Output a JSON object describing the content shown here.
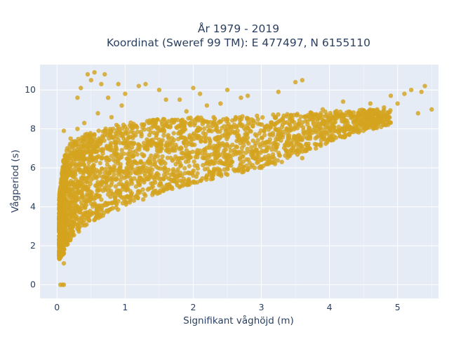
{
  "colors": {
    "plot_background": "#e5ecf6",
    "grid": "#ffffff",
    "marker": "#d4a41e",
    "text": "#2a3f5f"
  },
  "chart_data": {
    "type": "scatter",
    "title": "År 1979 - 2019",
    "subtitle": "Koordinat (Sweref 99 TM): E 477497, N 6155110",
    "xlabel": "Signifikant våghöjd (m)",
    "ylabel": "Vågperiod (s)",
    "xlim": [
      -0.25,
      5.6
    ],
    "ylim": [
      -0.7,
      11.3
    ],
    "xticks": [
      0,
      1,
      2,
      3,
      4,
      5
    ],
    "yticks": [
      0,
      2,
      4,
      6,
      8,
      10
    ],
    "grid": true,
    "legend": "none",
    "series": [
      {
        "marker_color": "#d4a41e",
        "points": [
          [
            0.05,
            0.0
          ],
          [
            0.08,
            0.0
          ],
          [
            0.1,
            0.0
          ],
          [
            0.06,
            1.5
          ],
          [
            0.1,
            1.1
          ],
          [
            0.05,
            3.8
          ],
          [
            0.1,
            1.8
          ],
          [
            0.15,
            2.2
          ],
          [
            0.2,
            2.6
          ],
          [
            0.3,
            3.0
          ],
          [
            0.4,
            3.3
          ],
          [
            0.5,
            3.6
          ],
          [
            0.6,
            3.8
          ],
          [
            0.8,
            4.2
          ],
          [
            1.0,
            4.5
          ],
          [
            1.2,
            4.8
          ],
          [
            1.5,
            5.1
          ],
          [
            2.0,
            5.6
          ],
          [
            2.5,
            6.0
          ],
          [
            3.0,
            6.4
          ],
          [
            3.5,
            6.8
          ],
          [
            3.0,
            6.0
          ],
          [
            3.2,
            6.2
          ],
          [
            3.6,
            6.5
          ],
          [
            3.8,
            7.0
          ],
          [
            4.0,
            7.5
          ],
          [
            0.1,
            5.0
          ],
          [
            0.15,
            7.0
          ],
          [
            0.2,
            7.5
          ],
          [
            0.1,
            7.9
          ],
          [
            0.3,
            8.0
          ],
          [
            0.4,
            8.3
          ],
          [
            0.3,
            9.6
          ],
          [
            0.45,
            10.8
          ],
          [
            0.5,
            10.5
          ],
          [
            0.55,
            10.9
          ],
          [
            0.7,
            10.8
          ],
          [
            0.65,
            10.3
          ],
          [
            0.9,
            10.3
          ],
          [
            1.2,
            10.2
          ],
          [
            1.3,
            10.3
          ],
          [
            1.0,
            9.8
          ],
          [
            1.5,
            10.0
          ],
          [
            1.6,
            9.5
          ],
          [
            2.0,
            10.1
          ],
          [
            2.1,
            9.8
          ],
          [
            2.5,
            10.0
          ],
          [
            2.8,
            9.7
          ],
          [
            3.25,
            9.9
          ],
          [
            3.6,
            10.5
          ],
          [
            3.5,
            10.4
          ],
          [
            5.4,
            10.2
          ],
          [
            5.35,
            9.9
          ],
          [
            5.2,
            10.0
          ],
          [
            5.1,
            9.8
          ],
          [
            4.9,
            9.7
          ],
          [
            5.0,
            9.3
          ],
          [
            5.3,
            8.8
          ],
          [
            4.6,
            9.3
          ],
          [
            4.7,
            9.0
          ],
          [
            4.8,
            8.6
          ],
          [
            4.5,
            8.9
          ],
          [
            4.4,
            8.5
          ],
          [
            4.3,
            8.1
          ],
          [
            4.0,
            8.0
          ],
          [
            3.8,
            7.9
          ],
          [
            3.6,
            7.0
          ],
          [
            3.5,
            7.5
          ],
          [
            3.3,
            6.3
          ],
          [
            3.1,
            6.2
          ],
          [
            2.9,
            6.0
          ],
          [
            3.2,
            7.3
          ],
          [
            4.6,
            8.2
          ],
          [
            4.8,
            9.1
          ],
          [
            4.2,
            9.4
          ],
          [
            5.5,
            9.0
          ],
          [
            2.2,
            9.2
          ],
          [
            1.8,
            9.5
          ],
          [
            0.6,
            8.8
          ],
          [
            0.8,
            8.6
          ],
          [
            0.75,
            9.6
          ],
          [
            0.35,
            10.1
          ],
          [
            0.95,
            9.2
          ],
          [
            2.4,
            9.3
          ],
          [
            2.7,
            9.6
          ],
          [
            1.9,
            8.9
          ],
          [
            3.9,
            9.0
          ],
          [
            4.1,
            8.8
          ]
        ],
        "dense_region": {
          "x_range": [
            0.03,
            4.9
          ],
          "lower_envelope": [
            [
              0.03,
              1.3
            ],
            [
              0.1,
              1.6
            ],
            [
              0.2,
              2.3
            ],
            [
              0.4,
              3.0
            ],
            [
              0.6,
              3.4
            ],
            [
              1.0,
              4.0
            ],
            [
              1.5,
              4.7
            ],
            [
              2.0,
              5.2
            ],
            [
              2.5,
              5.6
            ],
            [
              3.0,
              6.0
            ],
            [
              3.5,
              6.6
            ],
            [
              4.0,
              7.3
            ],
            [
              4.5,
              7.9
            ],
            [
              4.9,
              8.2
            ]
          ],
          "upper_envelope": [
            [
              0.03,
              4.5
            ],
            [
              0.1,
              6.6
            ],
            [
              0.2,
              7.3
            ],
            [
              0.4,
              7.7
            ],
            [
              0.6,
              8.0
            ],
            [
              1.0,
              8.3
            ],
            [
              1.5,
              8.5
            ],
            [
              2.0,
              8.6
            ],
            [
              2.5,
              8.6
            ],
            [
              3.0,
              8.7
            ],
            [
              3.5,
              8.8
            ],
            [
              4.0,
              8.9
            ],
            [
              4.5,
              9.0
            ],
            [
              4.9,
              9.0
            ]
          ]
        }
      }
    ]
  }
}
